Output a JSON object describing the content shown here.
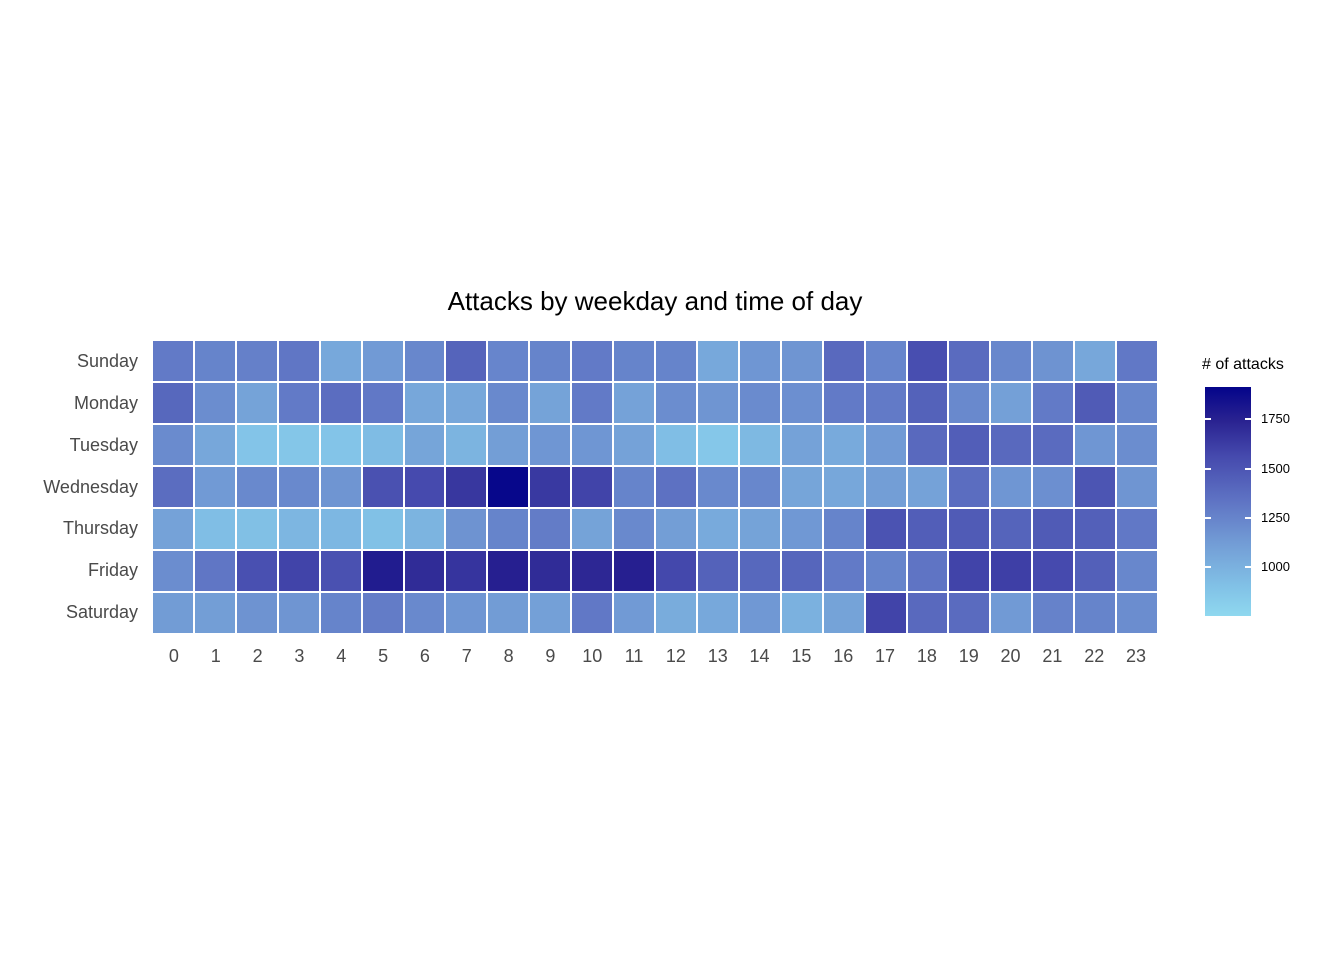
{
  "page": {
    "background": "#ffffff"
  },
  "chart_data": {
    "type": "heatmap",
    "title": "Attacks by weekday and time of day",
    "x_categories": [
      "0",
      "1",
      "2",
      "3",
      "4",
      "5",
      "6",
      "7",
      "8",
      "9",
      "10",
      "11",
      "12",
      "13",
      "14",
      "15",
      "16",
      "17",
      "18",
      "19",
      "20",
      "21",
      "22",
      "23"
    ],
    "y_categories": [
      "Sunday",
      "Monday",
      "Tuesday",
      "Wednesday",
      "Thursday",
      "Friday",
      "Saturday"
    ],
    "series": [
      {
        "name": "Sunday",
        "values": [
          1300,
          1250,
          1270,
          1320,
          1050,
          1130,
          1230,
          1420,
          1240,
          1250,
          1300,
          1250,
          1250,
          1050,
          1150,
          1160,
          1390,
          1240,
          1540,
          1380,
          1230,
          1170,
          1060,
          1310
        ]
      },
      {
        "name": "Monday",
        "values": [
          1400,
          1200,
          1080,
          1300,
          1370,
          1310,
          1060,
          1060,
          1220,
          1080,
          1300,
          1090,
          1200,
          1160,
          1210,
          1190,
          1300,
          1300,
          1430,
          1220,
          1100,
          1300,
          1470,
          1230
        ]
      },
      {
        "name": "Tuesday",
        "values": [
          1210,
          1060,
          880,
          870,
          880,
          930,
          1070,
          980,
          1110,
          1150,
          1150,
          1090,
          920,
          860,
          950,
          1090,
          1040,
          1130,
          1390,
          1450,
          1390,
          1380,
          1150,
          1200
        ]
      },
      {
        "name": "Wednesday",
        "values": [
          1370,
          1130,
          1220,
          1220,
          1160,
          1520,
          1560,
          1650,
          1900,
          1640,
          1590,
          1250,
          1350,
          1220,
          1230,
          1070,
          1060,
          1110,
          1090,
          1370,
          1150,
          1190,
          1500,
          1160
        ]
      },
      {
        "name": "Thursday",
        "values": [
          1090,
          920,
          910,
          970,
          960,
          900,
          980,
          1170,
          1250,
          1290,
          1080,
          1220,
          1110,
          1040,
          1080,
          1140,
          1250,
          1510,
          1450,
          1470,
          1420,
          1470,
          1440,
          1310
        ]
      },
      {
        "name": "Friday",
        "values": [
          1200,
          1320,
          1530,
          1590,
          1520,
          1780,
          1700,
          1660,
          1760,
          1700,
          1720,
          1760,
          1570,
          1430,
          1400,
          1410,
          1300,
          1250,
          1330,
          1590,
          1610,
          1560,
          1440,
          1230
        ]
      },
      {
        "name": "Saturday",
        "values": [
          1120,
          1110,
          1170,
          1160,
          1250,
          1290,
          1220,
          1150,
          1120,
          1100,
          1310,
          1130,
          1030,
          1050,
          1140,
          1000,
          1080,
          1590,
          1390,
          1380,
          1130,
          1260,
          1250,
          1200
        ]
      }
    ],
    "value_scale": {
      "min": 750,
      "max": 1915,
      "gradient_stops": [
        {
          "t": 0.0,
          "color": "#8FD8EF"
        },
        {
          "t": 0.12,
          "color": "#82C3E7"
        },
        {
          "t": 0.3,
          "color": "#74A0D7"
        },
        {
          "t": 0.5,
          "color": "#5F74C4"
        },
        {
          "t": 0.7,
          "color": "#4549AD"
        },
        {
          "t": 0.85,
          "color": "#2A2391"
        },
        {
          "t": 1.0,
          "color": "#04048A"
        }
      ]
    },
    "legend": {
      "title": "# of attacks",
      "position": "right",
      "tick_labels": [
        "1000",
        "1250",
        "1500",
        "1750"
      ],
      "tick_values": [
        1000,
        1250,
        1500,
        1750
      ]
    },
    "layout_hints": {
      "grid": "off",
      "cell_gap_color": "#ffffff",
      "axis_text_color": "#4a4a4a",
      "title_color": "#000000"
    }
  }
}
